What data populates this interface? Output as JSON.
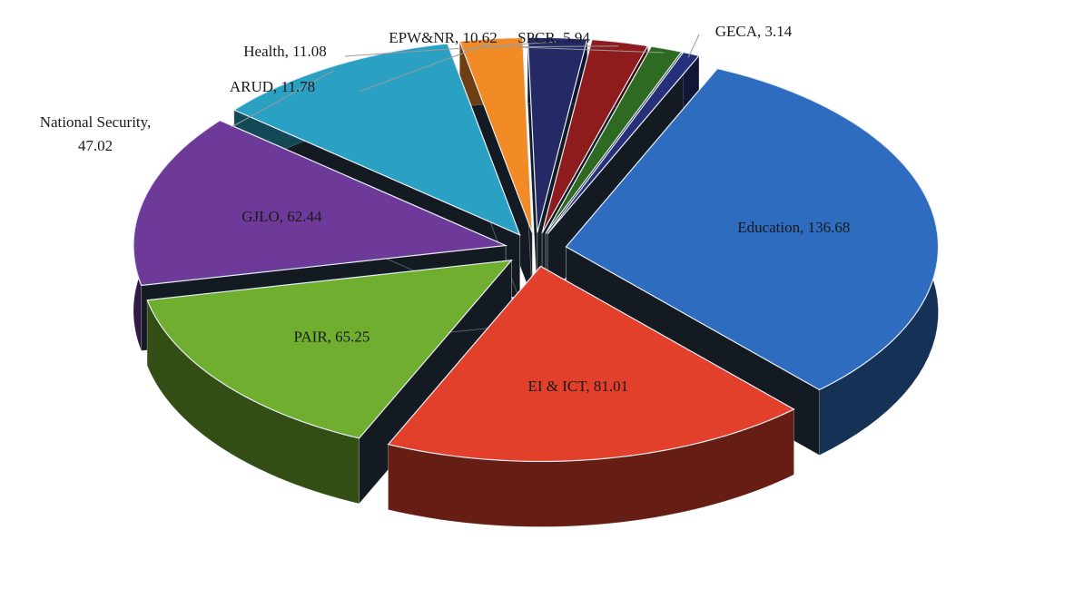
{
  "chart_data": {
    "type": "pie",
    "variant": "3d-exploded",
    "title": "",
    "series": [
      {
        "label": "Education",
        "value": 136.68,
        "display": "Education, 136.68",
        "color": "#2e6cc0",
        "label_position": "inside"
      },
      {
        "label": "EI & ICT",
        "value": 81.01,
        "display": "EI & ICT, 81.01",
        "color": "#e2402b",
        "label_position": "inside"
      },
      {
        "label": "PAIR",
        "value": 65.25,
        "display": "PAIR, 65.25",
        "color": "#6fae2e",
        "label_position": "inside"
      },
      {
        "label": "GJLO",
        "value": 62.44,
        "display": "GJLO, 62.44",
        "color": "#6e3a99",
        "label_position": "inside"
      },
      {
        "label": "National Security",
        "value": 47.02,
        "display_lines": [
          "National Security,",
          "47.02"
        ],
        "color": "#2aa0c2",
        "label_position": "outside"
      },
      {
        "label": "ARUD",
        "value": 11.78,
        "display": "ARUD, 11.78",
        "color": "#f28a26",
        "label_position": "outside"
      },
      {
        "label": "Health",
        "value": 11.08,
        "display": "Health, 11.08",
        "color": "#232a66",
        "label_position": "outside"
      },
      {
        "label": "EPW&NR",
        "value": 10.62,
        "display": "EPW&NR, 10.62",
        "color": "#8e1c1c",
        "label_position": "outside"
      },
      {
        "label": "SPCR",
        "value": 5.94,
        "display": "SPCR, 5.94",
        "color": "#2f6a22",
        "label_position": "outside"
      },
      {
        "label": "GECA",
        "value": 3.14,
        "display": "GECA, 3.14",
        "color": "#26307a",
        "label_position": "outside"
      }
    ],
    "legend": "none",
    "data_labels": "category-and-value"
  }
}
